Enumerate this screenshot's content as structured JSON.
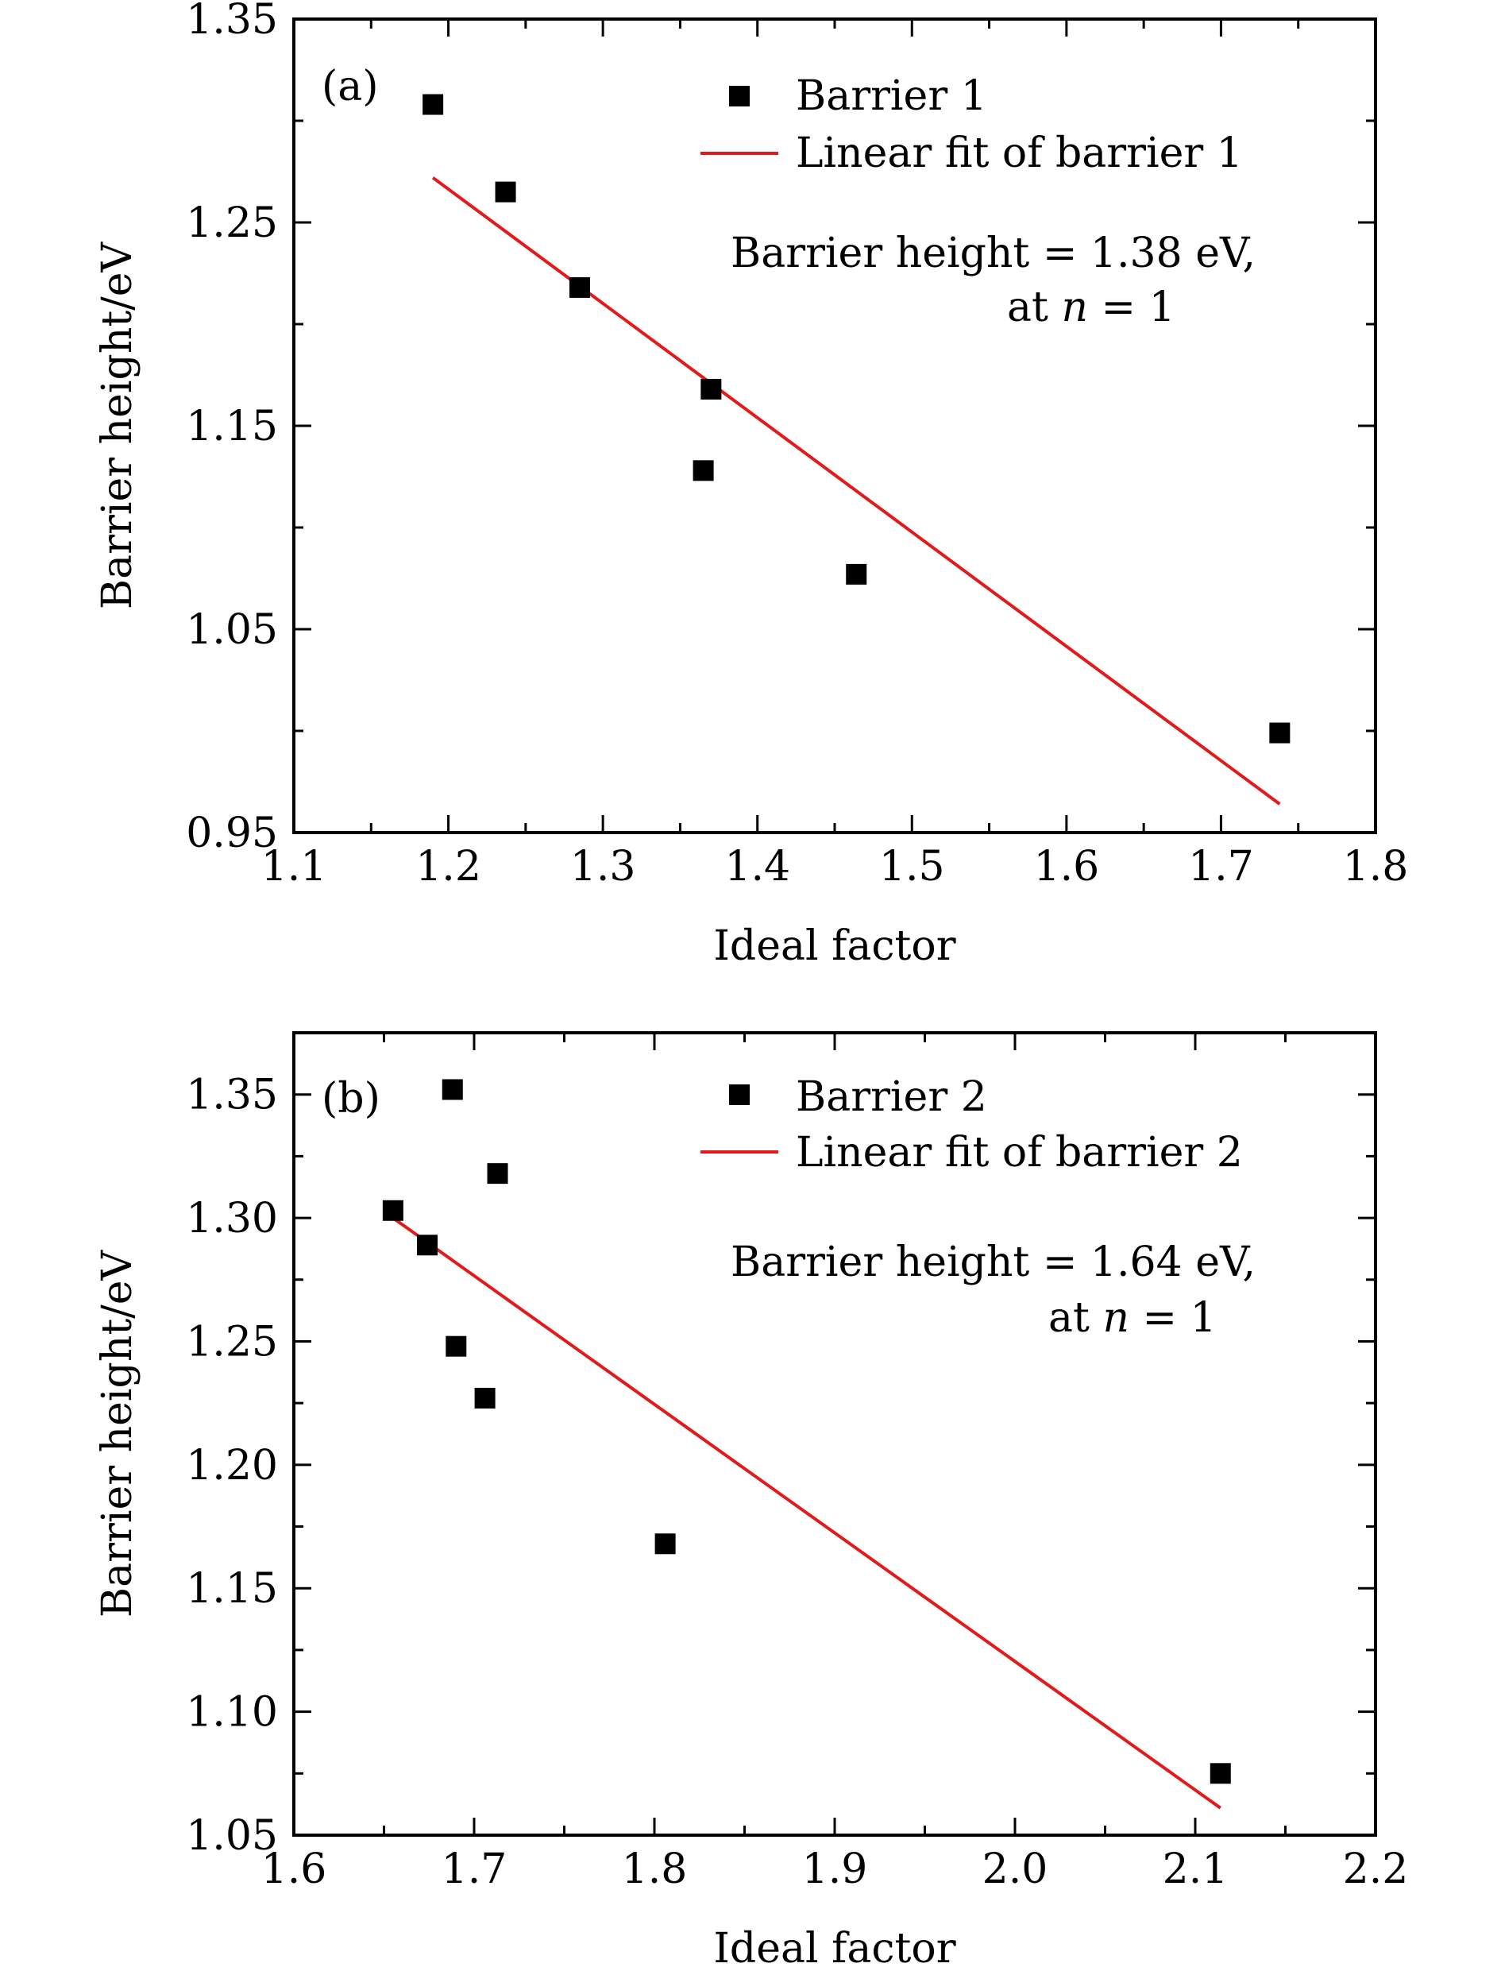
{
  "chart_data": [
    {
      "type": "scatter",
      "panel_label": "(a)",
      "xlabel": "Ideal factor",
      "ylabel": "Barrier height/eV",
      "xlim": [
        1.1,
        1.8
      ],
      "ylim": [
        0.95,
        1.35
      ],
      "xticks": [
        1.1,
        1.2,
        1.3,
        1.4,
        1.5,
        1.6,
        1.7,
        1.8
      ],
      "xtick_labels": [
        "1.1",
        "1.2",
        "1.3",
        "1.4",
        "1.5",
        "1.6",
        "1.7",
        "1.8"
      ],
      "yticks": [
        0.95,
        1.05,
        1.15,
        1.25,
        1.35
      ],
      "ytick_labels": [
        "0.95",
        "1.05",
        "1.15",
        "1.25",
        "1.35"
      ],
      "y_minor_step": 0.05,
      "x_minor_step": 0.05,
      "series": [
        {
          "name": "Barrier 1",
          "kind": "points",
          "color": "#000000",
          "points": [
            {
              "x": 1.19,
              "y": 1.308
            },
            {
              "x": 1.237,
              "y": 1.265
            },
            {
              "x": 1.285,
              "y": 1.218
            },
            {
              "x": 1.37,
              "y": 1.168
            },
            {
              "x": 1.365,
              "y": 1.128
            },
            {
              "x": 1.464,
              "y": 1.077
            },
            {
              "x": 1.738,
              "y": 0.999
            }
          ]
        },
        {
          "name": "Linear fit of barrier 1",
          "kind": "line",
          "color": "#e31a1c",
          "points": [
            {
              "x": 1.19,
              "y": 1.272
            },
            {
              "x": 1.738,
              "y": 0.964
            }
          ]
        }
      ],
      "annotation": {
        "line1": "Barrier height = 1.38 eV,",
        "line2_prefix": "at ",
        "line2_var": "n",
        "line2_suffix": " = 1"
      },
      "legend_position": "top-right",
      "grid": false
    },
    {
      "type": "scatter",
      "panel_label": "(b)",
      "xlabel": "Ideal factor",
      "ylabel": "Barrier height/eV",
      "xlim": [
        1.6,
        2.2
      ],
      "ylim": [
        1.05,
        1.375
      ],
      "xticks": [
        1.6,
        1.7,
        1.8,
        1.9,
        2.0,
        2.1,
        2.2
      ],
      "xtick_labels": [
        "1.6",
        "1.7",
        "1.8",
        "1.9",
        "2.0",
        "2.1",
        "2.2"
      ],
      "yticks": [
        1.05,
        1.1,
        1.15,
        1.2,
        1.25,
        1.3,
        1.35
      ],
      "ytick_labels": [
        "1.05",
        "1.10",
        "1.15",
        "1.20",
        "1.25",
        "1.30",
        "1.35"
      ],
      "y_minor_step": 0.025,
      "x_minor_step": 0.05,
      "series": [
        {
          "name": "Barrier 2",
          "kind": "points",
          "color": "#000000",
          "points": [
            {
              "x": 1.688,
              "y": 1.352
            },
            {
              "x": 1.713,
              "y": 1.318
            },
            {
              "x": 1.655,
              "y": 1.303
            },
            {
              "x": 1.674,
              "y": 1.289
            },
            {
              "x": 1.69,
              "y": 1.248
            },
            {
              "x": 1.706,
              "y": 1.227
            },
            {
              "x": 1.806,
              "y": 1.168
            },
            {
              "x": 2.114,
              "y": 1.075
            }
          ]
        },
        {
          "name": "Linear fit of barrier 2",
          "kind": "line",
          "color": "#e31a1c",
          "points": [
            {
              "x": 1.655,
              "y": 1.3
            },
            {
              "x": 2.114,
              "y": 1.061
            }
          ]
        }
      ],
      "annotation": {
        "line1": "Barrier height = 1.64 eV,",
        "line2_prefix": "at ",
        "line2_var": "n",
        "line2_suffix": " = 1"
      },
      "legend_position": "top-right",
      "grid": false
    }
  ]
}
